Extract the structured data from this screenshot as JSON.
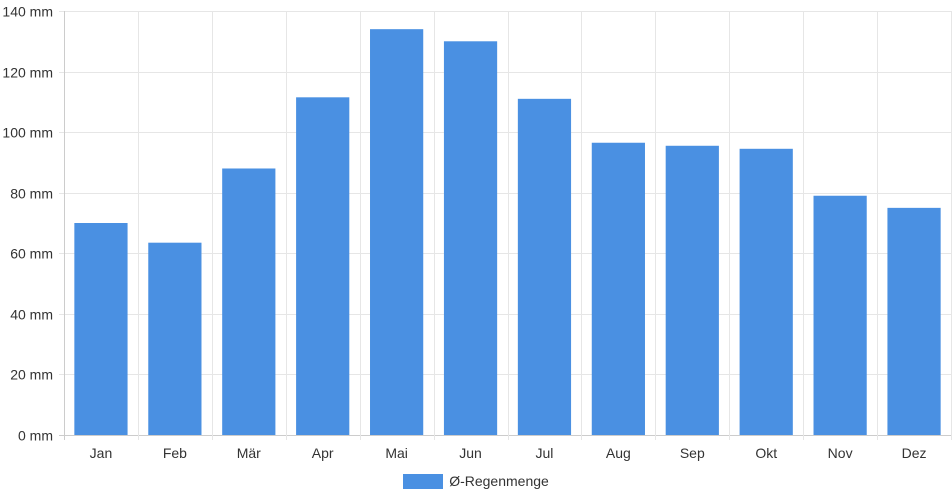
{
  "chart_data": {
    "type": "bar",
    "categories": [
      "Jan",
      "Feb",
      "Mär",
      "Apr",
      "Mai",
      "Jun",
      "Jul",
      "Aug",
      "Sep",
      "Okt",
      "Nov",
      "Dez"
    ],
    "series": [
      {
        "name": "Ø-Regenmenge",
        "values": [
          70,
          63.5,
          88,
          111.5,
          134,
          130,
          111,
          96.5,
          95.5,
          94.5,
          79,
          75
        ]
      }
    ],
    "title": "",
    "xlabel": "",
    "ylabel": "",
    "ylim": [
      0,
      140
    ],
    "yticks": [
      0,
      20,
      40,
      60,
      80,
      100,
      120,
      140
    ],
    "ytick_labels": [
      "0 mm",
      "20 mm",
      "40 mm",
      "60 mm",
      "80 mm",
      "100 mm",
      "120 mm",
      "140 mm"
    ],
    "grid": true,
    "legend_position": "bottom-center",
    "colors": {
      "bar_fill": "#4a90e2",
      "grid": "#e6e6e6",
      "axis": "#cccccc",
      "text": "#333333"
    }
  }
}
